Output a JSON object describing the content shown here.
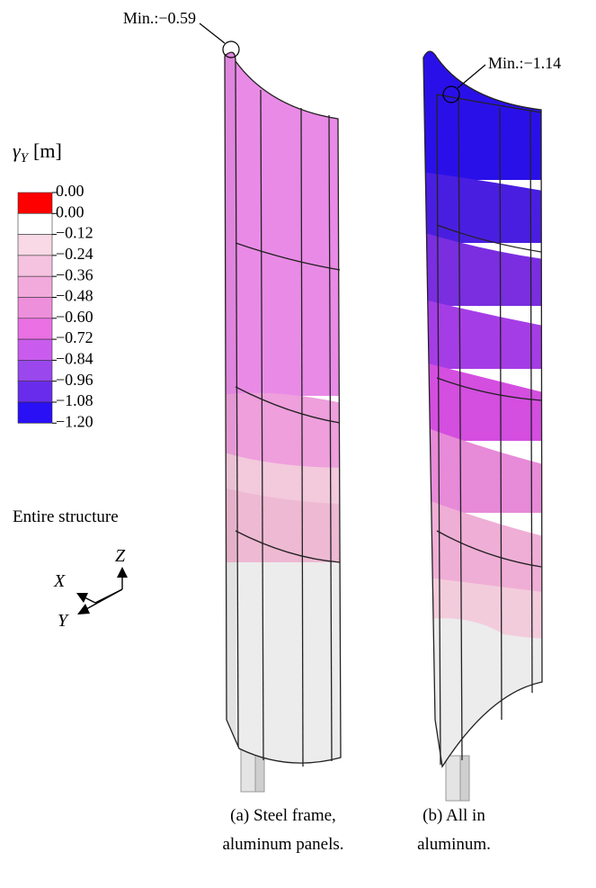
{
  "min_labels": [
    {
      "text": "Min.:−0.59"
    },
    {
      "text": "Min.:−1.14"
    }
  ],
  "legend": {
    "symbol": "γ",
    "subscript": "Y",
    "unit": "[m]",
    "labels": [
      "0.00",
      "0.00",
      "−0.12",
      "−0.24",
      "−0.36",
      "−0.48",
      "−0.60",
      "−0.72",
      "−0.84",
      "−0.96",
      "−1.08",
      "−1.20"
    ],
    "colors": [
      "#ff0000",
      "#ffffff",
      "#f8d9e5",
      "#f5c2df",
      "#f2aadc",
      "#ee8fdc",
      "#ea70e4",
      "#c95cee",
      "#9a47ee",
      "#6a2cec",
      "#2a10f5"
    ]
  },
  "axes_title": "Entire structure",
  "axes": {
    "z": "Z",
    "x": "X",
    "y": "Y"
  },
  "captions": [
    {
      "line1": "(a) Steel frame,",
      "line2": "aluminum panels."
    },
    {
      "line1": "(b) All in",
      "line2": "aluminum."
    }
  ]
}
